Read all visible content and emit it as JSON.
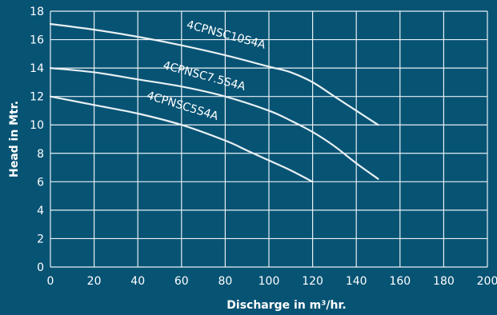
{
  "colors": {
    "background": "#075374",
    "grid": "#e8f0f3",
    "curve": "#e8f0f3",
    "text": "#ffffff"
  },
  "chart_data": {
    "type": "line",
    "title": "",
    "xlabel": "Discharge in m³/hr.",
    "ylabel": "Head in Mtr.",
    "xlim": [
      0,
      200
    ],
    "ylim": [
      0,
      18
    ],
    "xticks": [
      0,
      20,
      40,
      60,
      80,
      100,
      120,
      140,
      160,
      180,
      200
    ],
    "yticks": [
      0,
      2,
      4,
      6,
      8,
      10,
      12,
      14,
      16,
      18
    ],
    "grid": true,
    "legend": "none",
    "series": [
      {
        "name": "4CPNSC10S4A",
        "x": [
          0,
          20,
          40,
          60,
          80,
          100,
          110,
          120,
          130,
          140,
          150
        ],
        "y": [
          17.1,
          16.7,
          16.2,
          15.6,
          14.9,
          14.1,
          13.7,
          13.0,
          12.0,
          11.0,
          10.0
        ]
      },
      {
        "name": "4CPNSC7.5S4A",
        "x": [
          0,
          20,
          40,
          60,
          80,
          100,
          110,
          120,
          130,
          140,
          150
        ],
        "y": [
          14.0,
          13.7,
          13.2,
          12.7,
          12.0,
          11.0,
          10.3,
          9.5,
          8.5,
          7.3,
          6.2
        ]
      },
      {
        "name": "4CPNSC5S4A",
        "x": [
          0,
          20,
          40,
          60,
          80,
          90,
          100,
          110,
          120
        ],
        "y": [
          12.0,
          11.4,
          10.8,
          10.0,
          8.9,
          8.2,
          7.5,
          6.8,
          6.0
        ]
      }
    ]
  }
}
